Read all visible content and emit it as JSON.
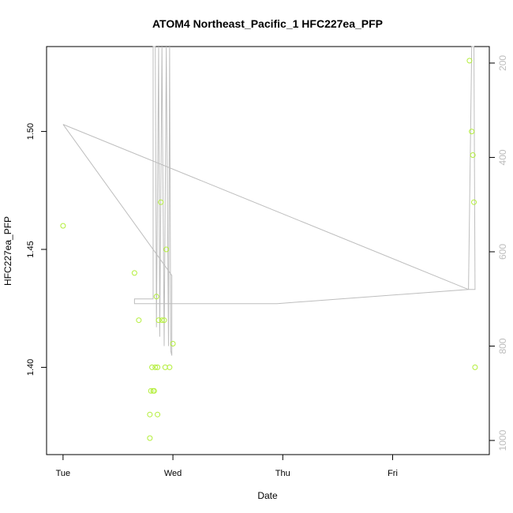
{
  "chart_data": {
    "type": "scatter",
    "title": "ATOM4 Northeast_Pacific_1 HFC227ea_PFP",
    "xlabel": "Date",
    "ylabel": "HFC227ea_PFP",
    "x_ticks": [
      "Tue",
      "Wed",
      "Thu",
      "Fri"
    ],
    "x_tick_values": [
      0,
      1,
      2,
      3
    ],
    "xlim": [
      -0.15,
      3.88
    ],
    "y_ticks": [
      "1.40",
      "1.45",
      "1.50"
    ],
    "y_tick_values": [
      1.4,
      1.45,
      1.5
    ],
    "ylim": [
      1.363,
      1.536
    ],
    "y2_ticks": [
      "200",
      "400",
      "600",
      "800",
      "1000"
    ],
    "y2_tick_values": [
      200,
      400,
      600,
      800,
      1000
    ],
    "y2lim": [
      1030,
      165
    ],
    "grid": false,
    "point_color": "#b3ee3a",
    "line_color": "#bebebe",
    "series": [
      {
        "values": [
          [
            0.0,
            1.46
          ],
          [
            0.65,
            1.44
          ],
          [
            0.69,
            1.42
          ],
          [
            0.79,
            1.38
          ],
          [
            0.79,
            1.37
          ],
          [
            0.8,
            1.39
          ],
          [
            0.81,
            1.4
          ],
          [
            0.82,
            1.39
          ],
          [
            0.83,
            1.39
          ],
          [
            0.84,
            1.4
          ],
          [
            0.85,
            1.43
          ],
          [
            0.86,
            1.4
          ],
          [
            0.86,
            1.38
          ],
          [
            0.87,
            1.42
          ],
          [
            0.89,
            1.47
          ],
          [
            0.9,
            1.42
          ],
          [
            0.92,
            1.42
          ],
          [
            0.93,
            1.4
          ],
          [
            0.94,
            1.45
          ],
          [
            0.97,
            1.4
          ],
          [
            1.0,
            1.41
          ],
          [
            3.7,
            1.53
          ],
          [
            3.72,
            1.5
          ],
          [
            3.73,
            1.49
          ],
          [
            3.74,
            1.47
          ],
          [
            3.75,
            1.4
          ]
        ]
      },
      {
        "axis": "right",
        "values": [
          [
            0.0,
            330
          ],
          [
            0.99,
            650
          ],
          [
            0.99,
            820
          ],
          [
            0.98,
            810
          ],
          [
            0.97,
            165
          ],
          [
            0.96,
            800
          ],
          [
            0.94,
            165
          ],
          [
            0.92,
            800
          ],
          [
            0.9,
            165
          ],
          [
            0.88,
            780
          ],
          [
            0.87,
            165
          ],
          [
            0.85,
            760
          ],
          [
            0.84,
            165
          ],
          [
            0.82,
            165
          ],
          [
            0.82,
            700
          ],
          [
            0.73,
            700
          ],
          [
            0.65,
            700
          ],
          [
            0.65,
            710
          ],
          [
            1.95,
            710
          ],
          [
            3.69,
            680
          ],
          [
            3.72,
            165
          ],
          [
            3.74,
            165
          ],
          [
            3.75,
            680
          ],
          [
            3.69,
            680
          ],
          [
            0.0,
            330
          ]
        ]
      }
    ]
  }
}
